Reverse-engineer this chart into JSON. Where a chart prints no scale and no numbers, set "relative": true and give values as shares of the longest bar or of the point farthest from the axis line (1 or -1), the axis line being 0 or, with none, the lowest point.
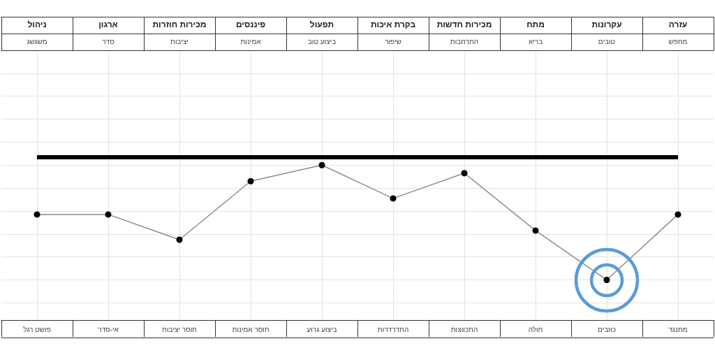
{
  "chart_data": {
    "type": "line",
    "relative": true,
    "categories": [
      "ניהול",
      "ארגון",
      "מכירות חוזרות",
      "פיננסים",
      "תפעול",
      "בקרת איכות",
      "מכירות חדשות",
      "מתח",
      "עקרונות",
      "עזרה"
    ],
    "annotations": [
      "משגשג",
      "סדר",
      "יציבות",
      "אמינות",
      "ביצוע טוב",
      "שיפור",
      "התרחבות",
      "בריא",
      "טובים",
      "מחפש",
      "פושט רגל",
      "אי-סדר",
      "חוסר יציבות",
      "חוסר אמינות",
      "ביצוע גרוע",
      "התדרדרות",
      "התכווצות",
      "חולה",
      "כוזבים",
      "מתנגד"
    ],
    "series": [
      {
        "color": "#8c8c8c",
        "values": [
          0.57,
          0.57,
          0.35,
          0.86,
          1,
          0.71,
          0.93,
          0.43,
          0,
          0.57
        ]
      }
    ],
    "ref_lines": [
      {
        "axis": "y",
        "value": 1.07,
        "color": "#000000"
      }
    ],
    "marker": "circle",
    "line_style": "solid",
    "grid": true
  }
}
